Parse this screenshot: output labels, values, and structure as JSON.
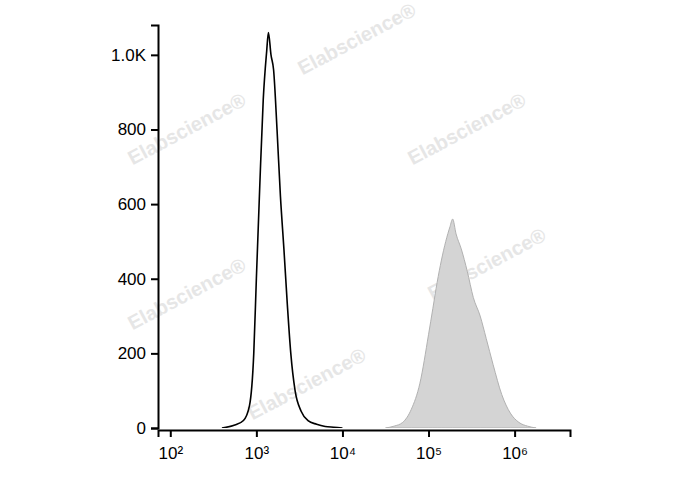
{
  "chart_data": {
    "type": "histogram",
    "log": "x",
    "watermark": "Elabscience®",
    "xlim": [
      72,
      4400000
    ],
    "xticks": [
      {
        "value": 100,
        "label": "10²"
      },
      {
        "value": 1000,
        "label": "10³"
      },
      {
        "value": 10000,
        "label": "10⁴"
      },
      {
        "value": 100000,
        "label": "10⁵"
      },
      {
        "value": 1000000,
        "label": "10⁶"
      }
    ],
    "ylim": [
      0,
      1080
    ],
    "yticks": [
      0,
      200,
      400,
      600,
      800,
      {
        "value": 1000,
        "label": "1.0K"
      }
    ],
    "series": [
      {
        "type": "area",
        "color": "#d4d4d4",
        "x": [
          31623,
          39811,
          50119,
          63096,
          79433,
          100000,
          112202,
          125893,
          141254,
          158489,
          177828,
          190546,
          208930,
          239883,
          281838,
          331131,
          398107,
          467735,
          562341,
          707946,
          891251,
          1122018,
          1412538,
          1778279
        ],
        "values": [
          0,
          5,
          15,
          50,
          120,
          250,
          320,
          390,
          450,
          500,
          540,
          560,
          520,
          480,
          420,
          350,
          300,
          240,
          170,
          90,
          40,
          15,
          5,
          0
        ]
      },
      {
        "type": "line",
        "color": "#000000",
        "x": [
          398,
          562,
          708,
          832,
          933,
          1000,
          1096,
          1202,
          1318,
          1380,
          1479,
          1585,
          1738,
          1905,
          2089,
          2291,
          2512,
          2818,
          3311,
          3981,
          5012,
          6310,
          7943,
          10000
        ],
        "values": [
          0,
          8,
          20,
          60,
          200,
          400,
          650,
          880,
          1010,
          1060,
          1000,
          960,
          800,
          620,
          480,
          330,
          200,
          100,
          45,
          20,
          10,
          4,
          2,
          0
        ]
      }
    ]
  }
}
